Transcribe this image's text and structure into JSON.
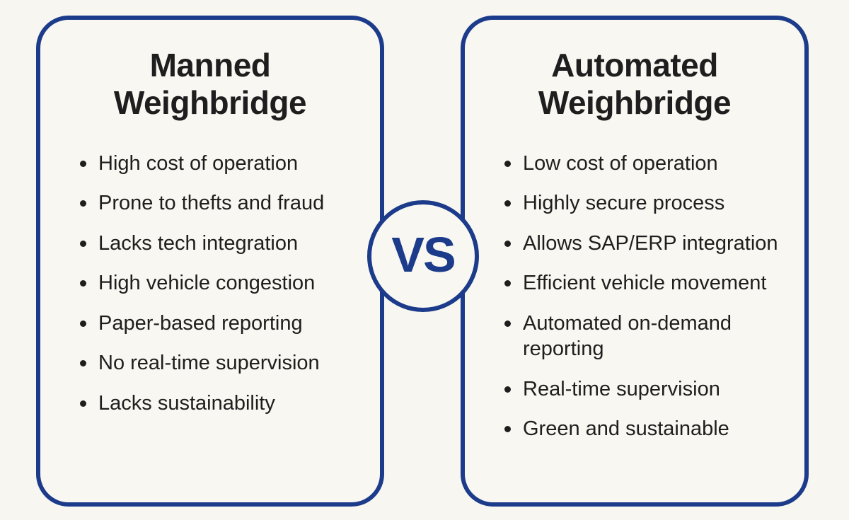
{
  "colors": {
    "accent_blue": "#1c3b8a",
    "background": "#f7f6f1",
    "card_background": "#f8f7f2",
    "text": "#1e1e1e"
  },
  "vs_label": "VS",
  "left_card": {
    "title": "Manned Weighbridge",
    "title_lines": [
      "Manned",
      "Weighbridge"
    ],
    "items": [
      "High cost of operation",
      "Prone to thefts and fraud",
      "Lacks tech integration",
      "High vehicle congestion",
      "Paper-based reporting",
      "No real-time supervision",
      "Lacks sustainability"
    ]
  },
  "right_card": {
    "title": "Automated Weighbridge",
    "title_lines": [
      "Automated",
      "Weighbridge"
    ],
    "items": [
      "Low cost of operation",
      "Highly secure process",
      "Allows SAP/ERP integration",
      "Efficient vehicle movement",
      "Automated on-demand reporting",
      "Real-time supervision",
      "Green and sustainable"
    ]
  }
}
